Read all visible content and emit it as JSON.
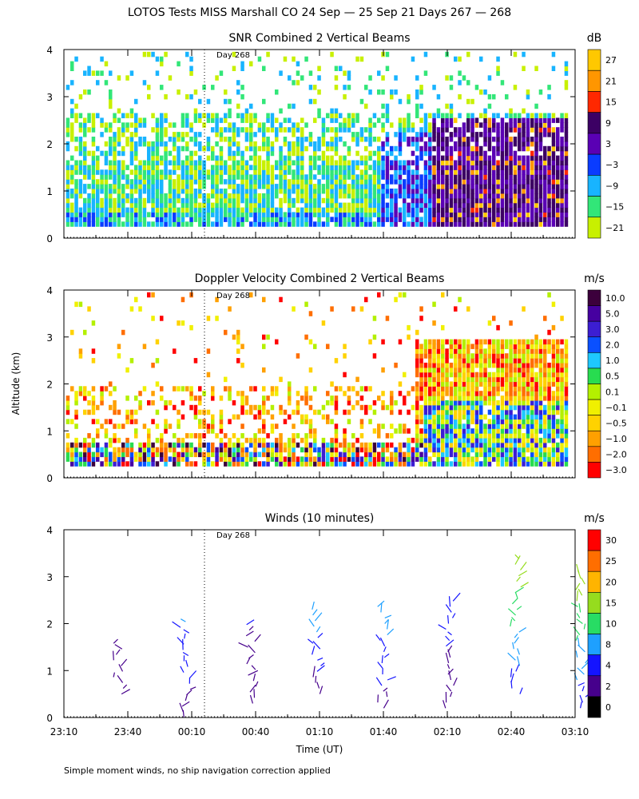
{
  "figure": {
    "title": "LOTOS Tests MISS Marshall CO  24 Sep — 25 Sep 21 Days 267 — 268",
    "ylabel": "Altitude (km)",
    "xlabel": "Time (UT)",
    "footnote": "Simple moment winds, no ship navigation correction applied",
    "day_marker": "Day 268",
    "day_marker_time_min": 66
  },
  "chart_data": [
    {
      "type": "heatmap",
      "title": "SNR Combined 2 Vertical Beams",
      "unit": "dB",
      "x_ticks": [
        "23:10",
        "23:40",
        "00:10",
        "00:40",
        "01:10",
        "01:40",
        "02:10",
        "02:40",
        "03:10"
      ],
      "x_range_min": [
        0,
        240
      ],
      "ylim": [
        0,
        4
      ],
      "y_ticks": [
        "0",
        "1",
        "2",
        "3",
        "4"
      ],
      "colorbar_labels": [
        "27",
        "21",
        "15",
        "9",
        "3",
        "−3",
        "−9",
        "−15",
        "−21"
      ],
      "colorbar_colors": [
        "#ffc800",
        "#ff9600",
        "#ff2800",
        "#3c0064",
        "#5a00b4",
        "#0a3cff",
        "#18b4ff",
        "#32e678",
        "#c8f000"
      ]
    },
    {
      "type": "heatmap",
      "title": "Doppler Velocity Combined 2 Vertical Beams",
      "unit": "m/s",
      "x_ticks": [
        "23:10",
        "23:40",
        "00:10",
        "00:40",
        "01:10",
        "01:40",
        "02:10",
        "02:40",
        "03:10"
      ],
      "x_range_min": [
        0,
        240
      ],
      "ylim": [
        0,
        4
      ],
      "y_ticks": [
        "0",
        "1",
        "2",
        "3",
        "4"
      ],
      "colorbar_labels": [
        "10.0",
        "5.0",
        "3.0",
        "2.0",
        "1.0",
        "0.5",
        "0.1",
        "−0.1",
        "−0.5",
        "−1.0",
        "−2.0",
        "−3.0"
      ],
      "colorbar_colors": [
        "#3c003c",
        "#4600a0",
        "#3c1ed2",
        "#0a50ff",
        "#1ec8ff",
        "#28dc50",
        "#b4f000",
        "#f0f000",
        "#ffd200",
        "#ffa000",
        "#ff6e00",
        "#ff0000"
      ]
    },
    {
      "type": "scatter",
      "title": "Winds (10 minutes)",
      "unit": "m/s",
      "x_ticks": [
        "23:10",
        "23:40",
        "00:10",
        "00:40",
        "01:10",
        "01:40",
        "02:10",
        "02:40",
        "03:10"
      ],
      "x_range_min": [
        0,
        240
      ],
      "ylim": [
        0,
        4
      ],
      "y_ticks": [
        "0",
        "1",
        "2",
        "3",
        "4"
      ],
      "colorbar_labels": [
        "30",
        "25",
        "20",
        "15",
        "10",
        "8",
        "4",
        "2",
        "0"
      ],
      "colorbar_colors": [
        "#ff0000",
        "#ff6e00",
        "#ffb400",
        "#96dc1e",
        "#28dc64",
        "#1ea0ff",
        "#1414ff",
        "#46008c",
        "#000000"
      ],
      "profile_times_min": [
        15,
        47,
        79,
        111,
        143,
        175,
        207,
        239
      ],
      "profile_times_rel": [
        0.07,
        0.21,
        0.35,
        0.495,
        0.635,
        0.775,
        0.915,
        0.95
      ],
      "profile_altitude_range_km": [
        [
          0.5,
          1.7
        ],
        [
          0.0,
          2.1
        ],
        [
          0.3,
          2.1
        ],
        [
          0.5,
          2.4
        ],
        [
          0.2,
          2.4
        ],
        [
          0.2,
          2.5
        ],
        [
          0.5,
          3.4
        ],
        [
          0.2,
          3.1
        ]
      ],
      "profile_max_speed": [
        6,
        10,
        6,
        12,
        12,
        8,
        20,
        20
      ]
    }
  ]
}
